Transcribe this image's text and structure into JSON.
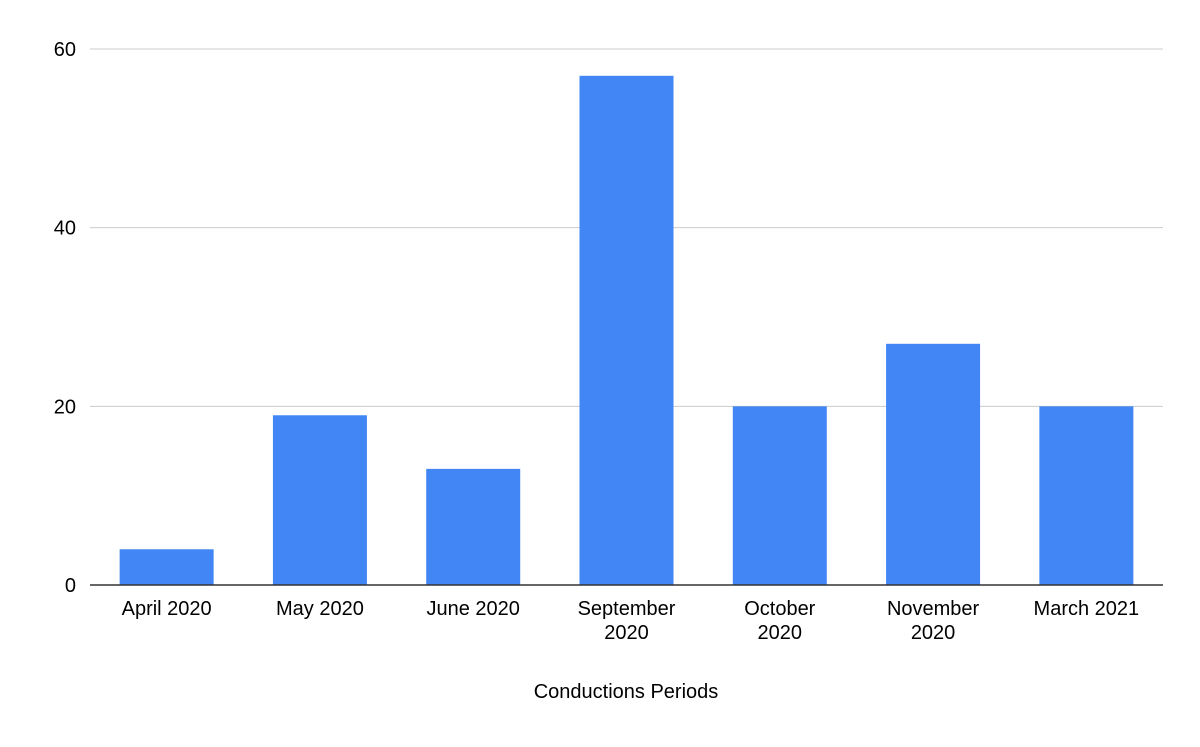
{
  "chart_data": {
    "type": "bar",
    "title": "",
    "xlabel": "Conductions Periods",
    "ylabel": "",
    "categories": [
      "April 2020",
      "May 2020",
      "June 2020",
      "September 2020",
      "October 2020",
      "November 2020",
      "March 2021"
    ],
    "category_lines": [
      [
        "April 2020"
      ],
      [
        "May 2020"
      ],
      [
        "June 2020"
      ],
      [
        "September",
        "2020"
      ],
      [
        "October",
        "2020"
      ],
      [
        "November",
        "2020"
      ],
      [
        "March 2021"
      ]
    ],
    "values": [
      4,
      19,
      13,
      57,
      20,
      27,
      20
    ],
    "ylim": [
      0,
      60
    ],
    "yticks": [
      0,
      20,
      40,
      60
    ],
    "grid": true,
    "legend": "none",
    "bar_color": "#4285f4",
    "grid_color": "#cccccc",
    "axis_color": "#333333"
  }
}
